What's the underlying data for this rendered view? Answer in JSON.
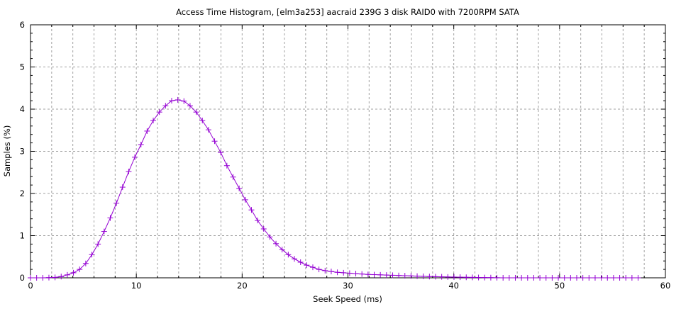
{
  "chart_data": {
    "type": "line",
    "title": "Access Time Histogram, [elm3a253] aacraid 239G 3 disk RAID0 with 7200RPM SATA",
    "xlabel": "Seek Speed (ms)",
    "ylabel": "Samples (%)",
    "xlim": [
      0,
      60
    ],
    "ylim": [
      0,
      6
    ],
    "xticks": [
      "0",
      "10",
      "20",
      "30",
      "40",
      "50",
      "60"
    ],
    "yticks": [
      "0",
      "1",
      "2",
      "3",
      "4",
      "5",
      "6"
    ],
    "grid": true,
    "series_color": "#9400d3",
    "marker": "plus",
    "x": [
      0,
      0.58,
      1.16,
      1.74,
      2.32,
      2.9,
      3.48,
      4.06,
      4.64,
      5.22,
      5.8,
      6.38,
      6.96,
      7.54,
      8.12,
      8.7,
      9.28,
      9.86,
      10.44,
      11.02,
      11.6,
      12.18,
      12.76,
      13.34,
      13.92,
      14.5,
      15.08,
      15.66,
      16.24,
      16.82,
      17.4,
      17.98,
      18.56,
      19.14,
      19.72,
      20.3,
      20.88,
      21.46,
      22.04,
      22.62,
      23.2,
      23.78,
      24.36,
      24.94,
      25.52,
      26.1,
      26.68,
      27.26,
      27.84,
      28.42,
      29,
      29.58,
      30.16,
      30.74,
      31.32,
      31.9,
      32.48,
      33.06,
      33.64,
      34.22,
      34.8,
      35.38,
      35.96,
      36.54,
      37.12,
      37.7,
      38.28,
      38.86,
      39.44,
      40.02,
      40.6,
      41.18,
      41.76,
      42.34,
      42.92,
      43.5,
      44.08,
      44.66,
      45.24,
      45.82,
      46.4,
      46.98,
      47.56,
      48.14,
      48.72,
      49.3,
      49.88,
      50.46,
      51.04,
      51.62,
      52.2,
      52.78,
      53.36,
      53.94,
      54.52,
      55.1,
      55.68,
      56.26,
      56.84,
      57.42
    ],
    "y": [
      0,
      0,
      0,
      0.005,
      0.01,
      0.03,
      0.07,
      0.12,
      0.2,
      0.34,
      0.55,
      0.8,
      1.1,
      1.42,
      1.77,
      2.15,
      2.52,
      2.86,
      3.16,
      3.48,
      3.73,
      3.93,
      4.08,
      4.2,
      4.22,
      4.19,
      4.08,
      3.93,
      3.73,
      3.51,
      3.24,
      2.97,
      2.66,
      2.39,
      2.12,
      1.85,
      1.61,
      1.36,
      1.16,
      0.97,
      0.81,
      0.67,
      0.55,
      0.45,
      0.37,
      0.3,
      0.25,
      0.2,
      0.17,
      0.15,
      0.13,
      0.12,
      0.11,
      0.1,
      0.09,
      0.08,
      0.075,
      0.07,
      0.065,
      0.06,
      0.055,
      0.05,
      0.045,
      0.04,
      0.035,
      0.03,
      0.027,
      0.024,
      0.02,
      0.018,
      0.015,
      0.012,
      0.01,
      0.008,
      0.006,
      0.004,
      0.002,
      0,
      0,
      0,
      0,
      0,
      0,
      0,
      0,
      0,
      0,
      0,
      0,
      0,
      0,
      0,
      0,
      0,
      0,
      0,
      0,
      0,
      0,
      0
    ]
  }
}
